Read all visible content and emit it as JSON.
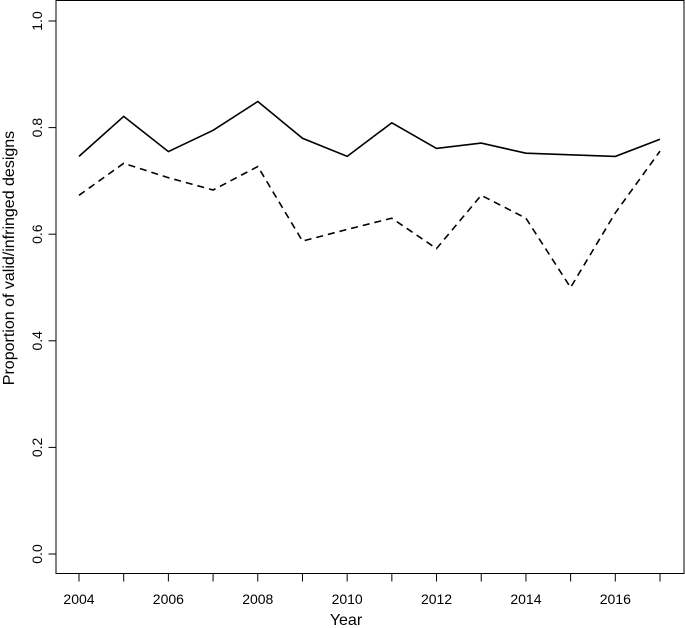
{
  "chart_data": {
    "type": "line",
    "xlabel": "Year",
    "ylabel": "Proportion of valid/infringed designs",
    "xlim": [
      2004,
      2017
    ],
    "ylim": [
      0.0,
      1.0
    ],
    "x_ticks": [
      2004,
      2005,
      2006,
      2007,
      2008,
      2009,
      2010,
      2011,
      2012,
      2013,
      2014,
      2015,
      2016,
      2017
    ],
    "x_tick_labels": [
      "2004",
      "",
      "2006",
      "",
      "2008",
      "",
      "2010",
      "",
      "2012",
      "",
      "2014",
      "",
      "2016",
      ""
    ],
    "y_ticks": [
      0.0,
      0.2,
      0.4,
      0.6,
      0.8,
      1.0
    ],
    "y_tick_labels": [
      "0.0",
      "0.2",
      "0.4",
      "0.6",
      "0.8",
      "1.0"
    ],
    "grid": false,
    "legend": "none",
    "x": [
      2004,
      2005,
      2006,
      2007,
      2008,
      2009,
      2010,
      2011,
      2012,
      2013,
      2014,
      2015,
      2016,
      2017
    ],
    "series": [
      {
        "style": "solid",
        "color": "#000000",
        "values": [
          0.746,
          0.821,
          0.755,
          0.795,
          0.849,
          0.78,
          0.746,
          0.809,
          0.761,
          0.771,
          0.752,
          0.749,
          0.746,
          0.778
        ]
      },
      {
        "style": "dashed",
        "color": "#000000",
        "values": [
          0.673,
          0.733,
          0.706,
          0.683,
          0.727,
          0.587,
          0.609,
          0.63,
          0.573,
          0.673,
          0.63,
          0.5,
          0.64,
          0.756
        ]
      }
    ]
  }
}
